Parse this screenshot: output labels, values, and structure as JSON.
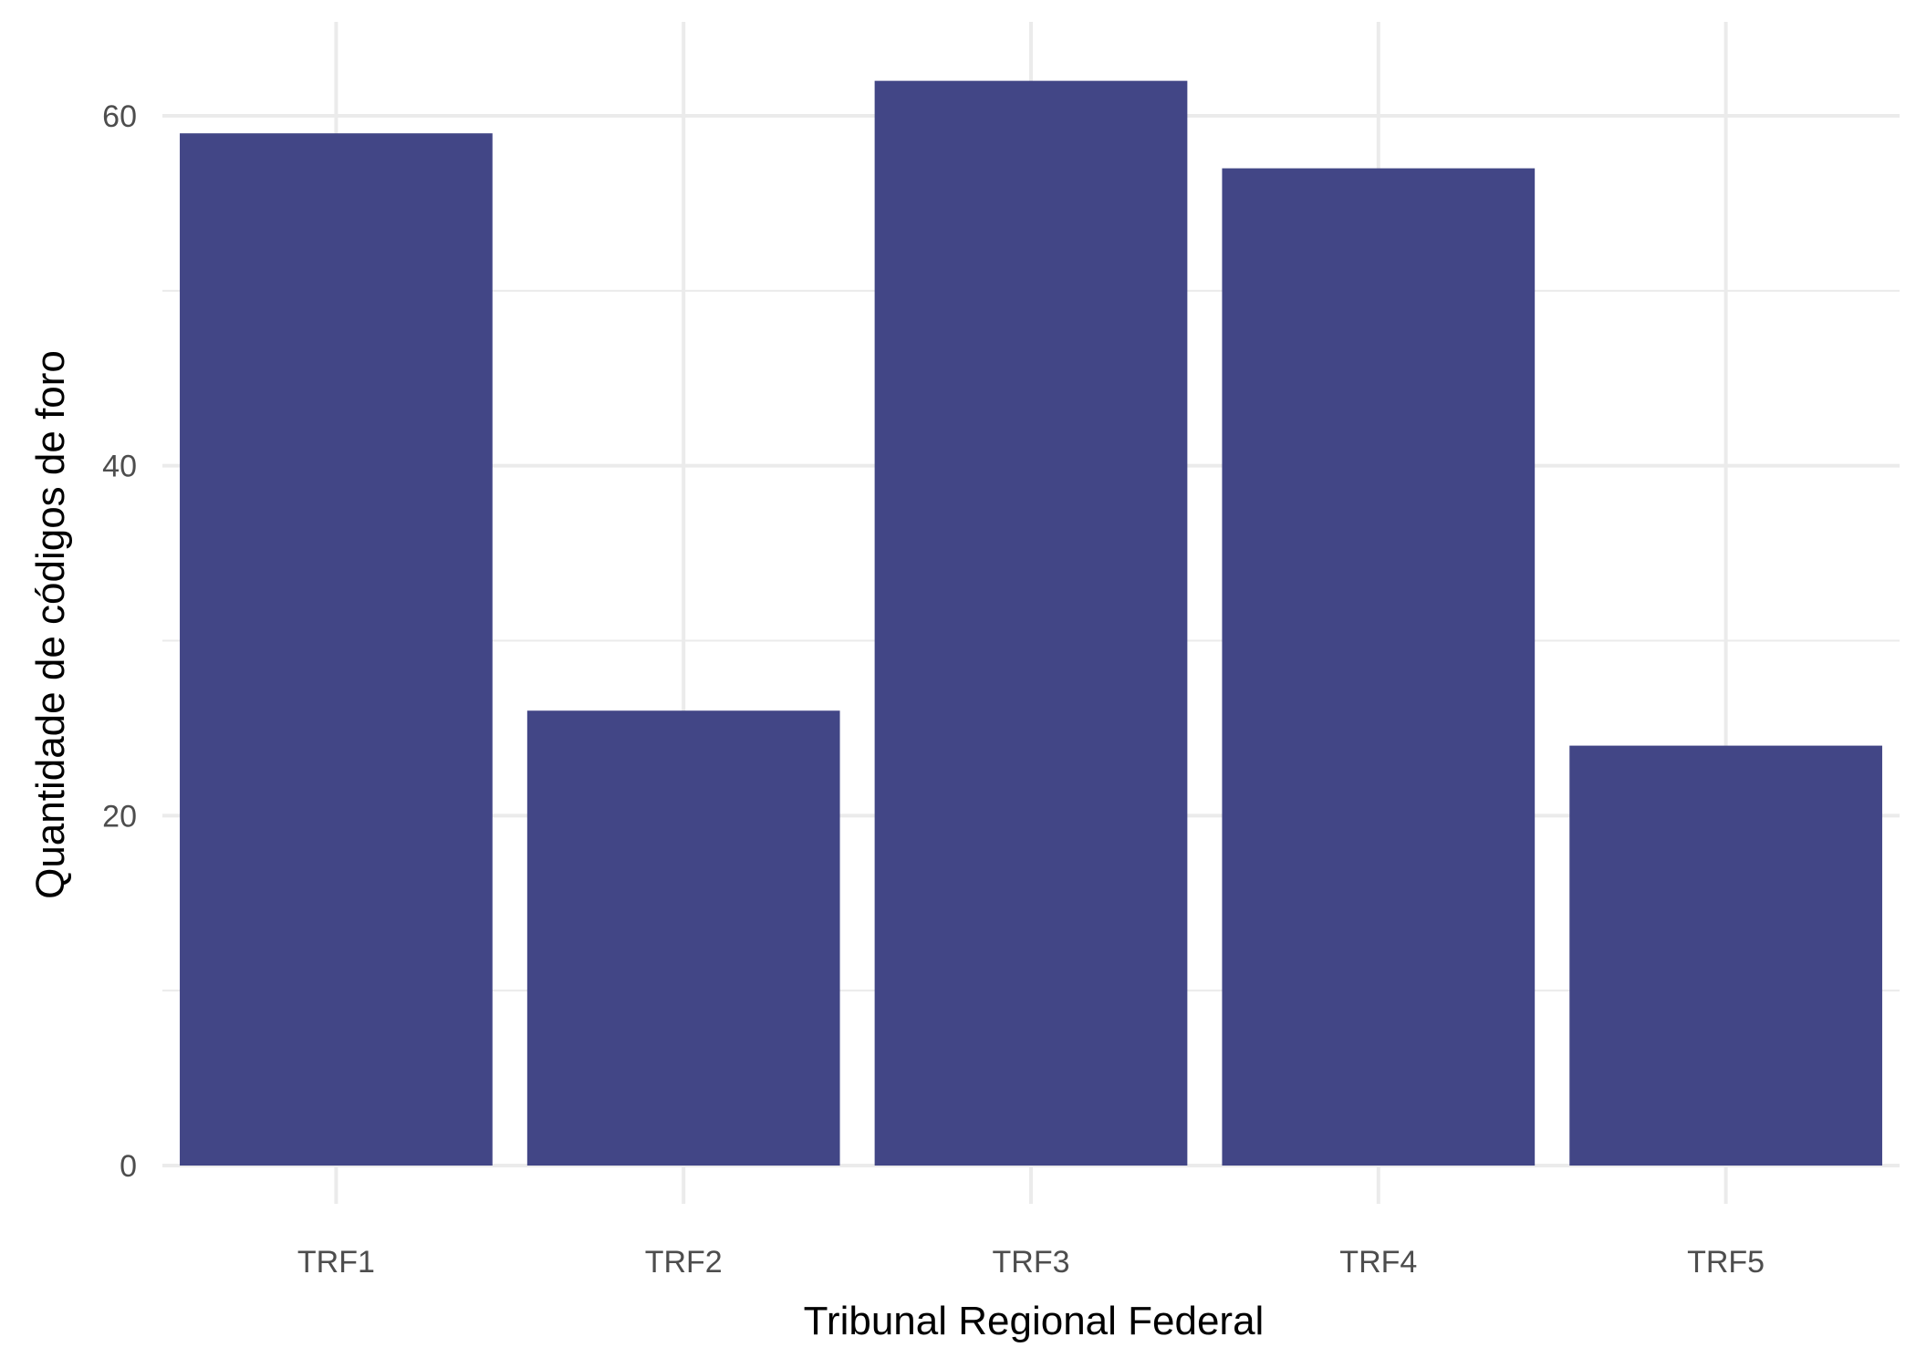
{
  "chart_data": {
    "type": "bar",
    "categories": [
      "TRF1",
      "TRF2",
      "TRF3",
      "TRF4",
      "TRF5"
    ],
    "values": [
      59,
      26,
      62,
      57,
      24
    ],
    "xlabel": "Tribunal Regional Federal",
    "ylabel": "Quantidade de códigos de foro",
    "ylim": [
      0,
      65
    ],
    "yticks": [
      0,
      20,
      40,
      60
    ],
    "y_minor_ticks": [
      10,
      30,
      50
    ],
    "grid": true,
    "legend": "none",
    "colors": {
      "bar": "#424686",
      "grid": "#ebebeb",
      "background": "#ffffff"
    }
  }
}
